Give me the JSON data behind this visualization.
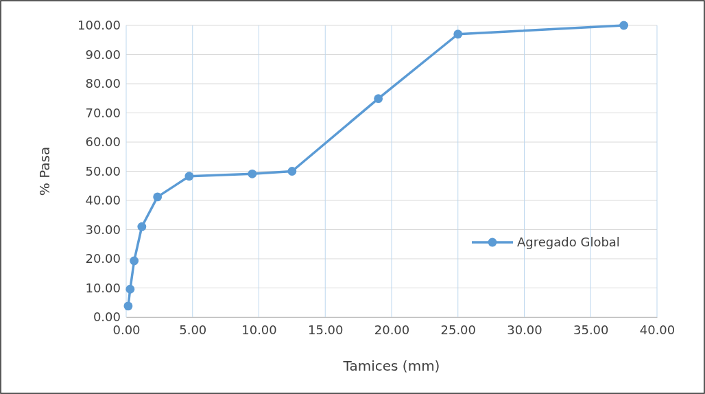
{
  "chart_data": {
    "type": "line",
    "xlabel": "Tamices (mm)",
    "ylabel": "% Pasa",
    "x": [
      0.15,
      0.3,
      0.6,
      1.18,
      2.36,
      4.75,
      9.5,
      12.5,
      19,
      25,
      37.5
    ],
    "series": [
      {
        "name": "Agregado Global",
        "color": "#5b9bd5",
        "values": [
          3.8,
          9.6,
          19.3,
          31.0,
          41.2,
          48.3,
          49.1,
          50.0,
          74.9,
          97.0,
          100.0
        ]
      }
    ],
    "xlim": [
      0,
      40
    ],
    "xticks": [
      {
        "value": 0,
        "label": "0.00"
      },
      {
        "value": 5,
        "label": "5.00"
      },
      {
        "value": 10,
        "label": "10.00"
      },
      {
        "value": 15,
        "label": "15.00"
      },
      {
        "value": 20,
        "label": "20.00"
      },
      {
        "value": 25,
        "label": "25.00"
      },
      {
        "value": 30,
        "label": "30.00"
      },
      {
        "value": 35,
        "label": "35.00"
      },
      {
        "value": 40,
        "label": "40.00"
      }
    ],
    "ylim": [
      0,
      100
    ],
    "yticks": [
      {
        "value": 0,
        "label": "0.00"
      },
      {
        "value": 10,
        "label": "10.00"
      },
      {
        "value": 20,
        "label": "20.00"
      },
      {
        "value": 30,
        "label": "30.00"
      },
      {
        "value": 40,
        "label": "40.00"
      },
      {
        "value": 50,
        "label": "50.00"
      },
      {
        "value": 60,
        "label": "60.00"
      },
      {
        "value": 70,
        "label": "70.00"
      },
      {
        "value": 80,
        "label": "80.00"
      },
      {
        "value": 90,
        "label": "90.00"
      },
      {
        "value": 100,
        "label": "100.00"
      }
    ],
    "grid": true,
    "legend": "right",
    "marker": "circle",
    "line_style": "solid"
  }
}
